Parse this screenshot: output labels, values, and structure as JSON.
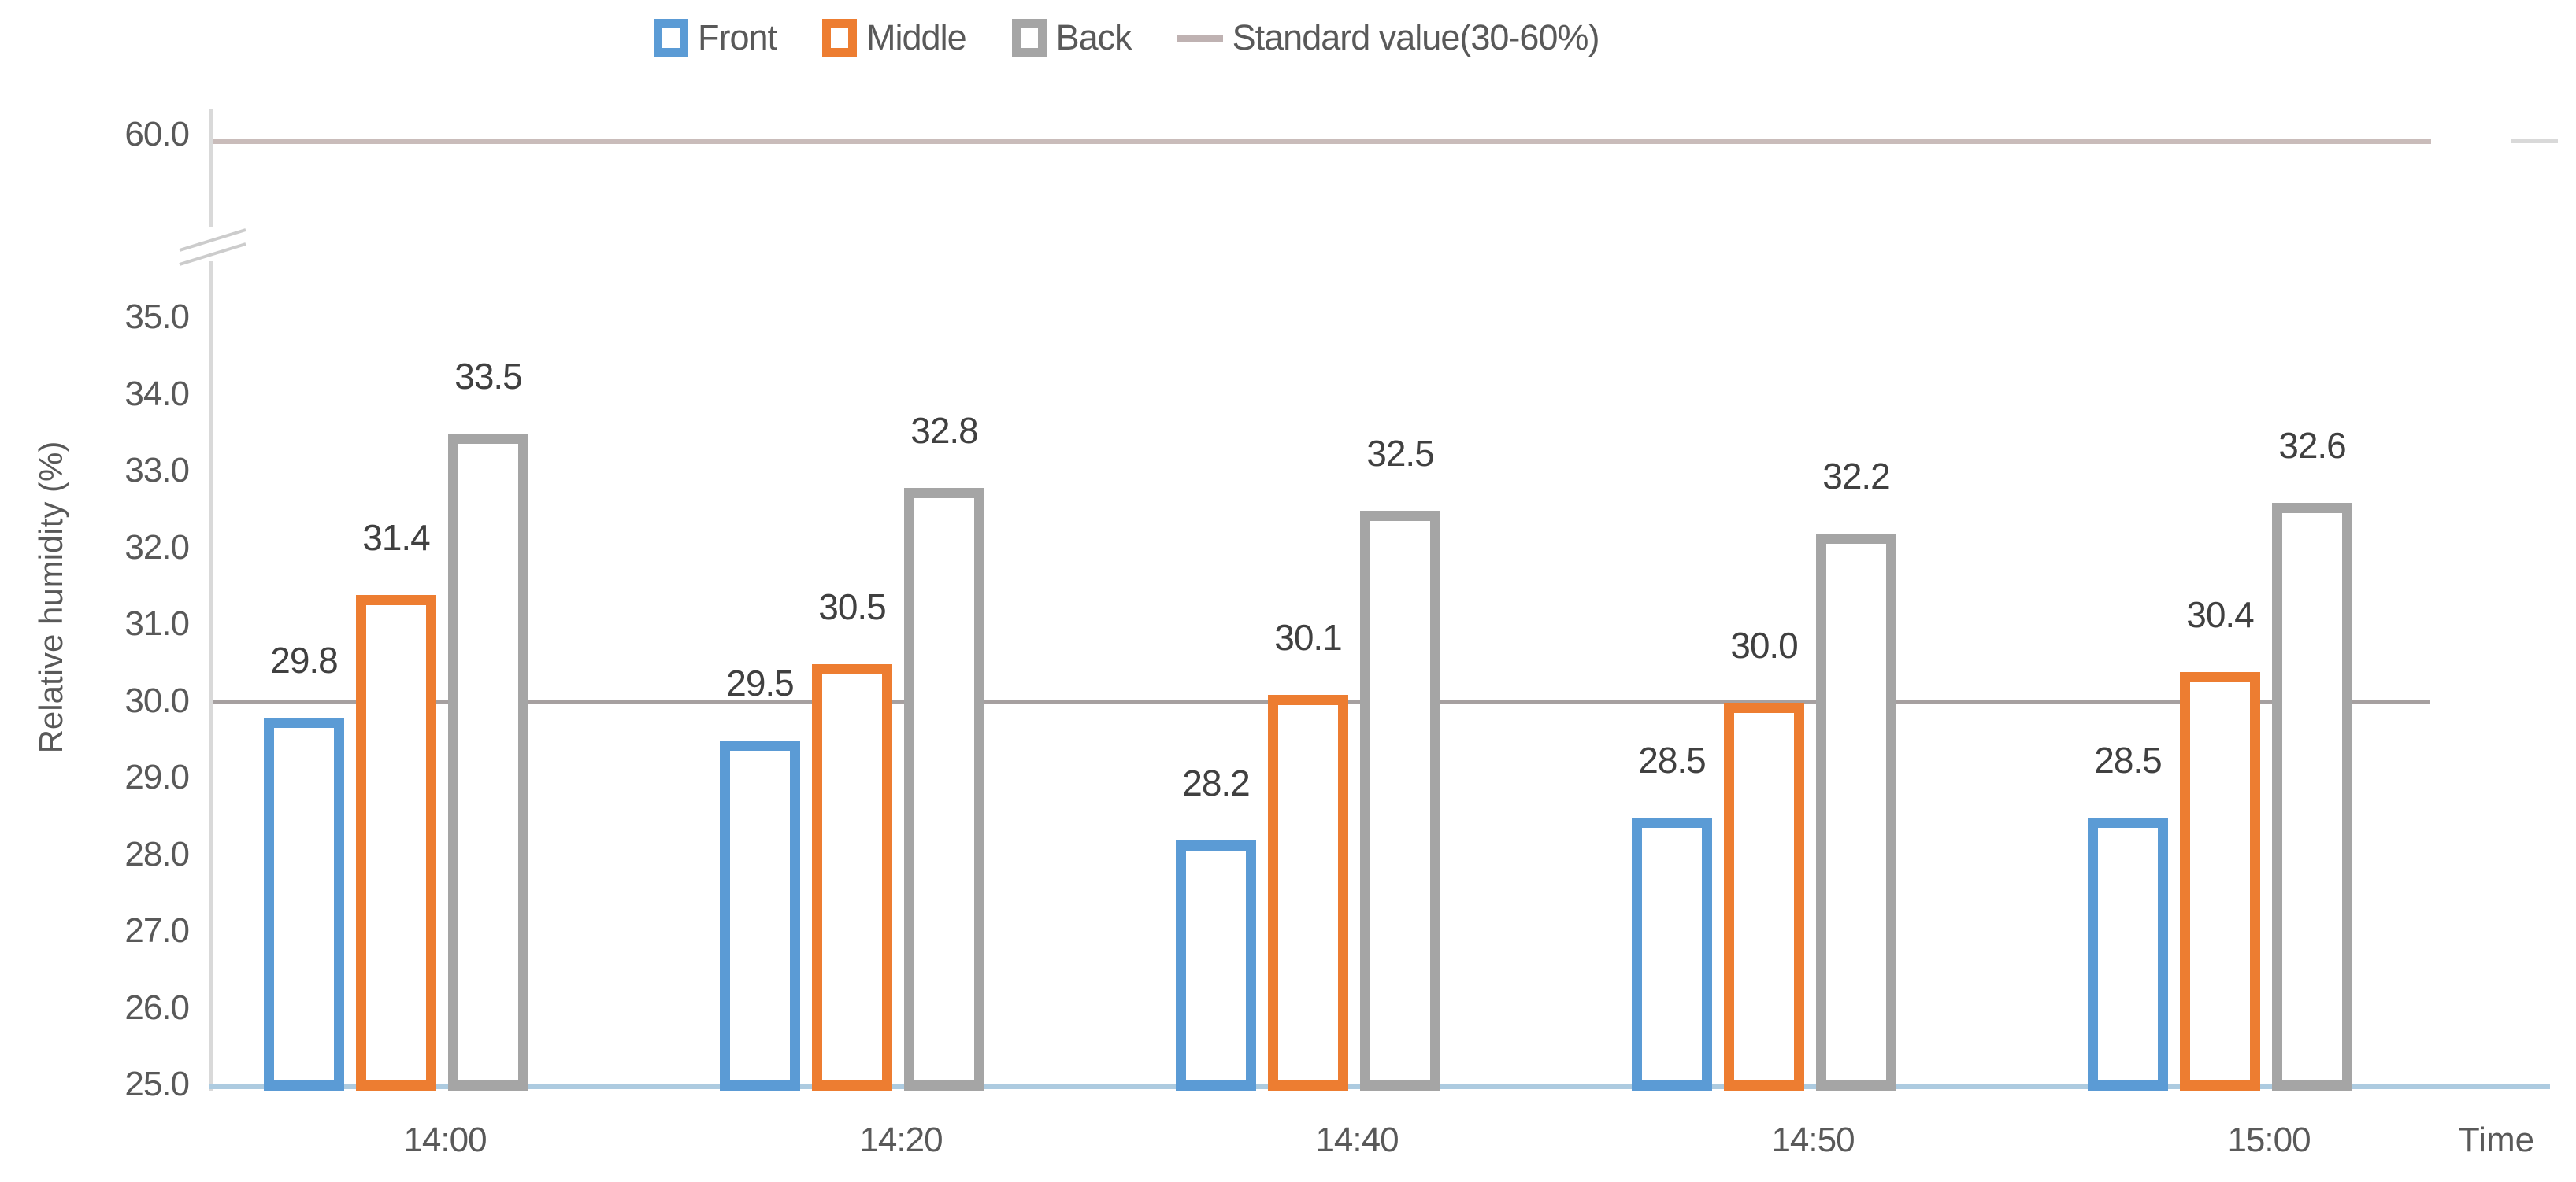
{
  "legend": {
    "items": [
      {
        "label": "Front",
        "marker": "box",
        "color": "#5B9BD5"
      },
      {
        "label": "Middle",
        "marker": "box",
        "color": "#ED7D31"
      },
      {
        "label": "Back",
        "marker": "box",
        "color": "#A5A5A5"
      },
      {
        "label": "Standard value(30-60%)",
        "marker": "line",
        "color": "#BFB2B2"
      }
    ]
  },
  "chart_data": {
    "type": "bar",
    "bar_style": "outlined-hollow",
    "categories": [
      "14:00",
      "14:20",
      "14:40",
      "14:50",
      "15:00"
    ],
    "series": [
      {
        "name": "Front",
        "color": "#5B9BD5",
        "values": [
          29.8,
          29.5,
          28.2,
          28.5,
          28.5
        ]
      },
      {
        "name": "Middle",
        "color": "#ED7D31",
        "values": [
          31.4,
          30.5,
          30.1,
          30.0,
          30.4
        ]
      },
      {
        "name": "Back",
        "color": "#A5A5A5",
        "values": [
          33.5,
          32.8,
          32.5,
          32.2,
          32.6
        ]
      }
    ],
    "reference_lines": [
      {
        "name": "Standard value lower bound",
        "value": 30.0,
        "color": "#A6A0A0"
      },
      {
        "name": "Standard value upper bound",
        "value": 60.0,
        "color": "#C9BCBA"
      }
    ],
    "yticks": [
      25.0,
      26.0,
      27.0,
      28.0,
      29.0,
      30.0,
      31.0,
      32.0,
      33.0,
      34.0,
      35.0,
      60.0
    ],
    "ylim": [
      25.0,
      35.0
    ],
    "axis_break_between": [
      35.0,
      60.0
    ],
    "ylabel": "Relative humidity (%)",
    "xlabel": "Time",
    "value_label_decimals": 1,
    "grid": "off",
    "legend_position": "top",
    "axis_colors": {
      "x_axis": "#ADCBE0",
      "y_axis": "#D9D9D9"
    },
    "text_colors": {
      "ticks": "#595959",
      "value_labels": "#404040"
    }
  }
}
